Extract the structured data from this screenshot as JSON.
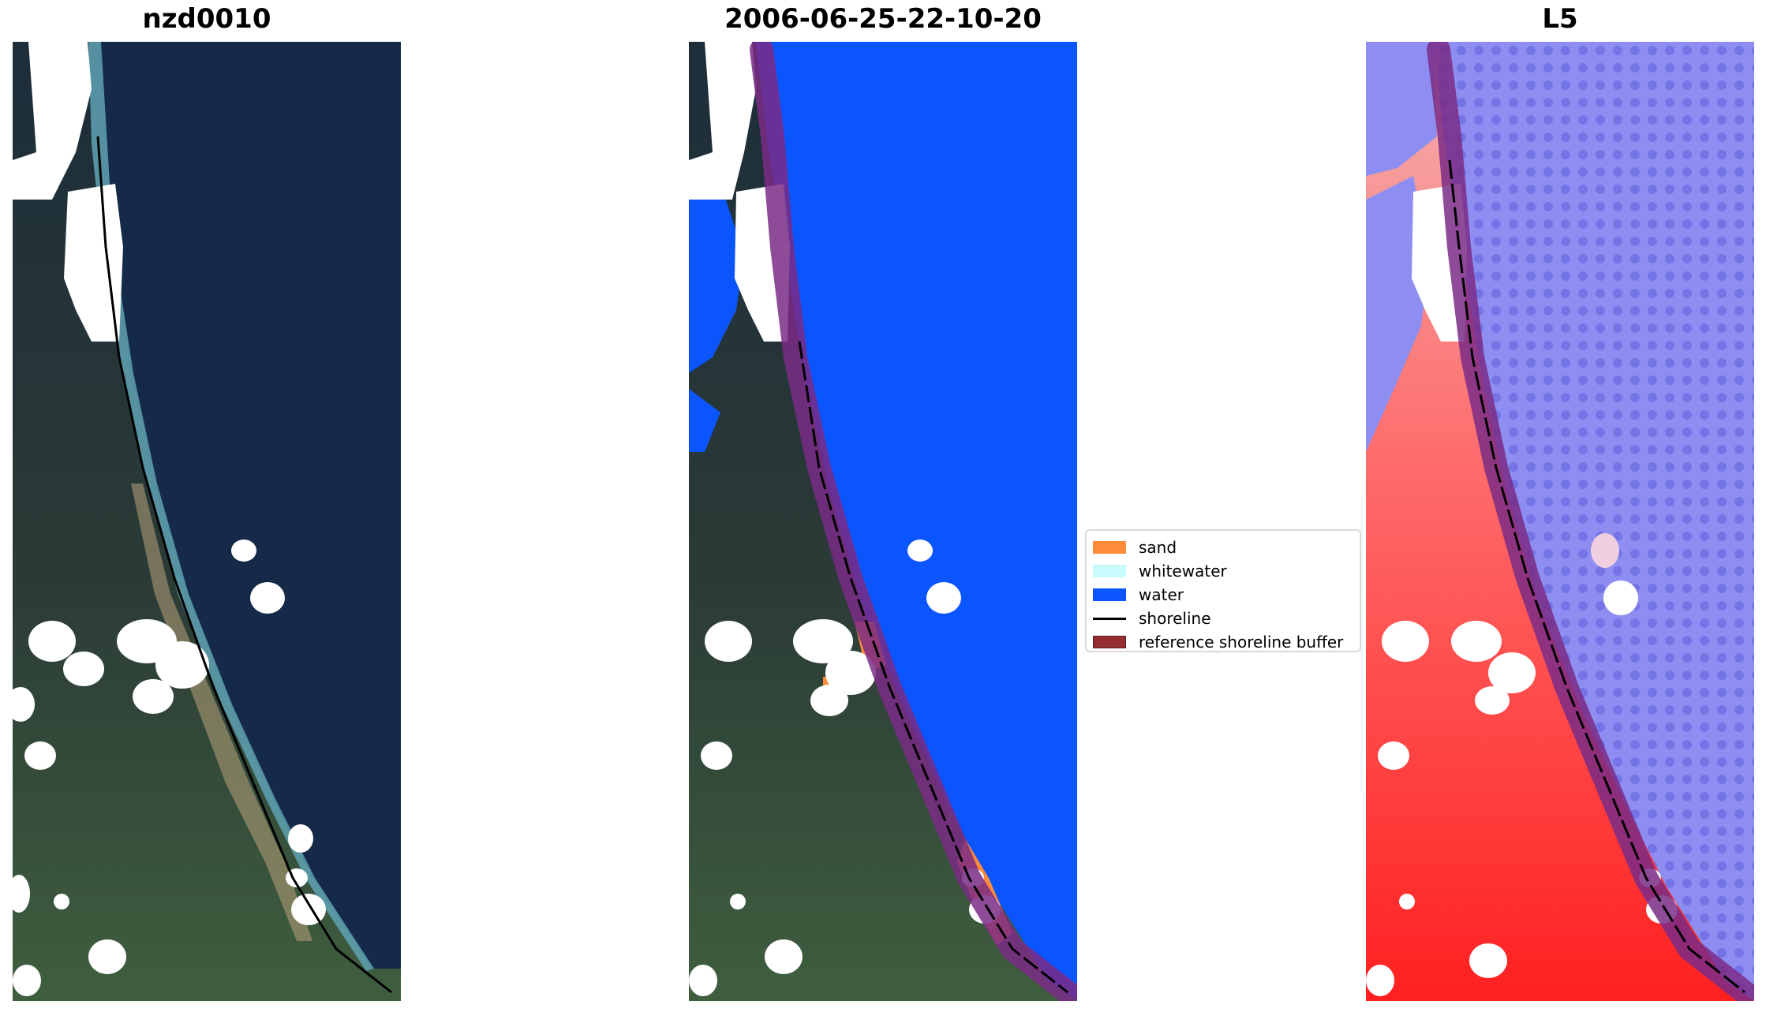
{
  "panels": [
    {
      "title": "nzd0010"
    },
    {
      "title": "2006-06-25-22-10-20"
    },
    {
      "title": "L5"
    }
  ],
  "legend": {
    "items": [
      {
        "label": "sand",
        "kind": "patch",
        "color": "#ff8c3a"
      },
      {
        "label": "whitewater",
        "kind": "patch",
        "color": "#c8fbfb"
      },
      {
        "label": "water",
        "kind": "patch",
        "color": "#0b55ff"
      },
      {
        "label": "shoreline",
        "kind": "line",
        "color": "#000000"
      },
      {
        "label": "reference shoreline buffer",
        "kind": "patch",
        "color": "#962d32"
      }
    ]
  },
  "colors": {
    "land_dark": "#1e2e38",
    "land_green": "#3a5a3c",
    "ocean_rgb": "#142a48",
    "cloud": "#ffffff",
    "water_class": "#0b55ff",
    "buffer_overlay": "#7a2b86",
    "index_land": "#ff2a2a",
    "index_water": "#8080f0"
  }
}
